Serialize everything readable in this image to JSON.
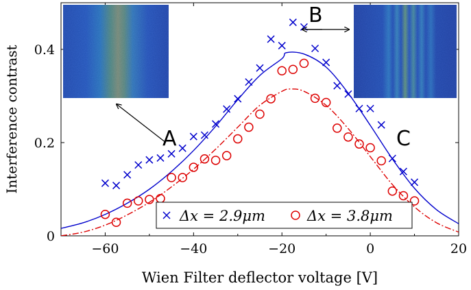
{
  "chart_data": {
    "type": "scatter",
    "xlabel": "Wien Filter deflector voltage [V]",
    "ylabel": "Interference contrast",
    "xlim": [
      -70,
      20
    ],
    "ylim": [
      0,
      0.5
    ],
    "xticks": [
      -60,
      -40,
      -20,
      0,
      20
    ],
    "yticks": [
      0,
      0.2,
      0.4
    ],
    "xtick_labels": [
      "−60",
      "−40",
      "−20",
      "0",
      "20"
    ],
    "ytick_labels": [
      "0",
      "0.2",
      "0.4"
    ],
    "grid": false,
    "legend_position": "bottom-right",
    "series": [
      {
        "name": "Δx = 2.9μm",
        "marker": "x",
        "color": "#0000cc",
        "x": [
          -60,
          -57.5,
          -55,
          -52.5,
          -50,
          -47.5,
          -45,
          -42.5,
          -40,
          -37.5,
          -35,
          -32.5,
          -30,
          -27.5,
          -25,
          -22.5,
          -20,
          -17.5,
          -15,
          -12.5,
          -10,
          -7.5,
          -5,
          -2.5,
          0,
          2.5,
          5,
          7.5,
          10
        ],
        "y": [
          0.113,
          0.108,
          0.131,
          0.152,
          0.163,
          0.167,
          0.176,
          0.188,
          0.213,
          0.216,
          0.24,
          0.272,
          0.294,
          0.33,
          0.36,
          0.422,
          0.408,
          0.458,
          0.448,
          0.402,
          0.372,
          0.322,
          0.304,
          0.273,
          0.273,
          0.238,
          0.166,
          0.138,
          0.115
        ]
      },
      {
        "name": "Δx = 3.8μm",
        "marker": "o",
        "color": "#dd0000",
        "x": [
          -60,
          -57.5,
          -55,
          -52.5,
          -50,
          -47.5,
          -45,
          -42.5,
          -40,
          -37.5,
          -35,
          -32.5,
          -30,
          -27.5,
          -25,
          -22.5,
          -20,
          -17.5,
          -15,
          -12.5,
          -10,
          -7.5,
          -5,
          -2.5,
          0,
          2.5,
          5,
          7.5,
          10
        ],
        "y": [
          0.046,
          0.029,
          0.07,
          0.075,
          0.078,
          0.08,
          0.125,
          0.125,
          0.147,
          0.165,
          0.162,
          0.172,
          0.208,
          0.233,
          0.261,
          0.294,
          0.354,
          0.357,
          0.37,
          0.295,
          0.286,
          0.231,
          0.212,
          0.197,
          0.189,
          0.161,
          0.096,
          0.086,
          0.075
        ]
      },
      {
        "name": "",
        "style": "solid",
        "color": "#0000cc",
        "x": [
          -70,
          -65,
          -60,
          -55,
          -50,
          -45,
          -40,
          -35,
          -30,
          -25,
          -20,
          -19,
          -15,
          -10,
          -5,
          0,
          5,
          10,
          15,
          20
        ],
        "y": [
          0.016,
          0.028,
          0.046,
          0.07,
          0.1,
          0.138,
          0.183,
          0.235,
          0.292,
          0.344,
          0.38,
          0.393,
          0.39,
          0.362,
          0.306,
          0.237,
          0.165,
          0.102,
          0.056,
          0.026
        ]
      },
      {
        "name": "",
        "style": "dashdot",
        "color": "#dd0000",
        "x": [
          -70,
          -65,
          -60,
          -55,
          -50,
          -45,
          -40,
          -35,
          -30,
          -25,
          -20,
          -18,
          -15,
          -10,
          -5,
          0,
          5,
          10,
          15,
          20
        ],
        "y": [
          0.0,
          0.008,
          0.023,
          0.045,
          0.072,
          0.105,
          0.143,
          0.186,
          0.233,
          0.28,
          0.31,
          0.315,
          0.31,
          0.28,
          0.23,
          0.17,
          0.11,
          0.062,
          0.028,
          0.008
        ]
      }
    ],
    "annotations": [
      {
        "text": "A"
      },
      {
        "text": "B"
      },
      {
        "text": "C"
      }
    ]
  }
}
